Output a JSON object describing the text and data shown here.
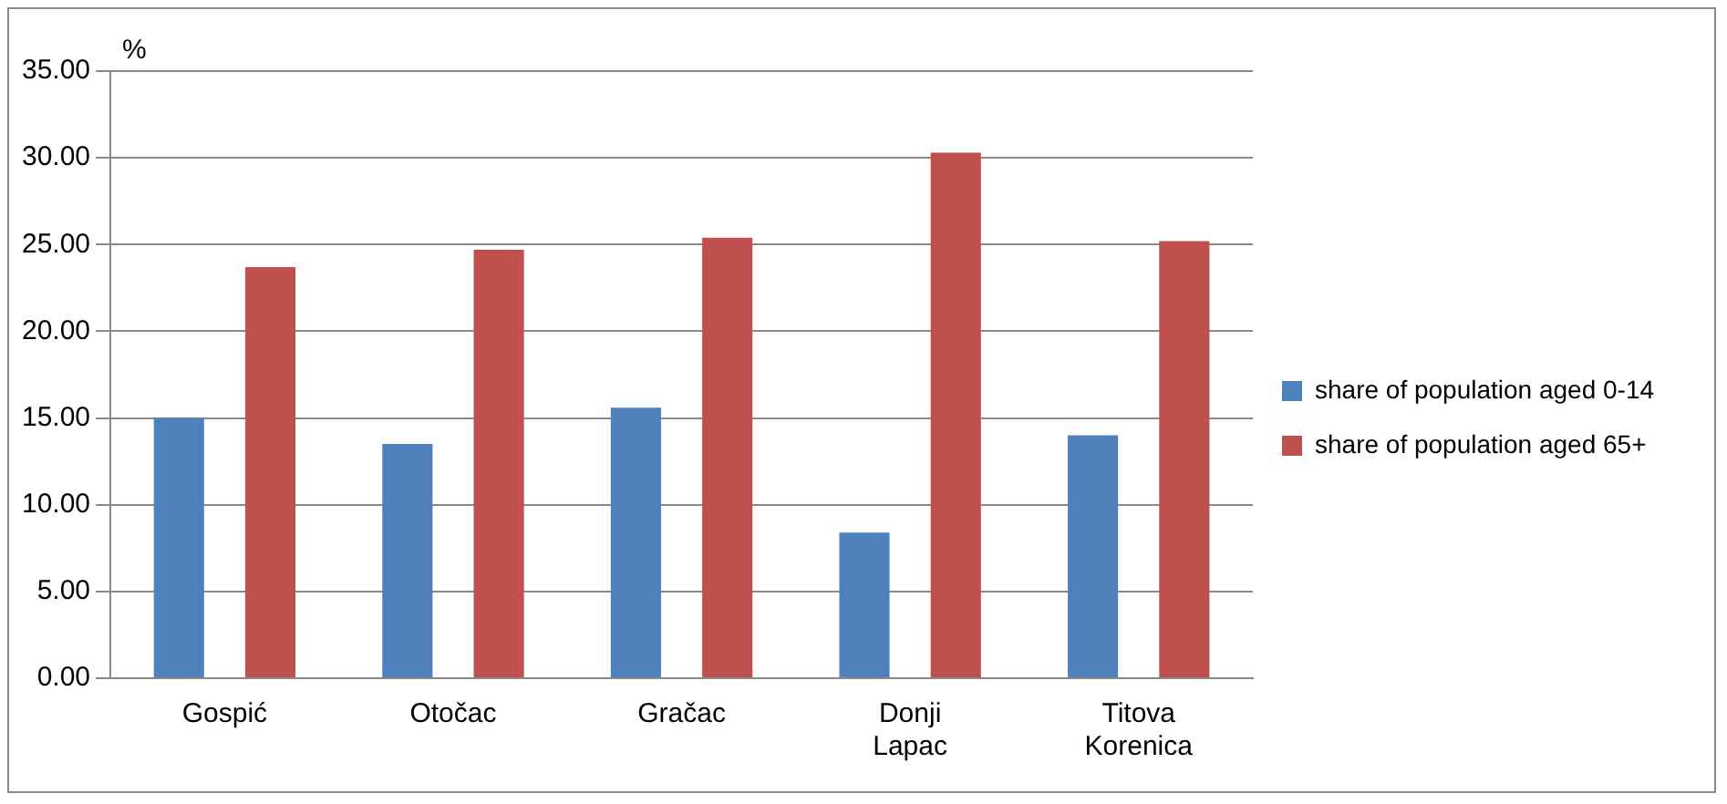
{
  "chart_data": {
    "type": "bar",
    "ylabel": "%",
    "categories": [
      "Gospić",
      "Otočac",
      "Gračac",
      "Donji Lapac",
      "Titova Korenica"
    ],
    "series": [
      {
        "name": "share of population aged 0-14",
        "color": "#4f81bd",
        "values": [
          15.0,
          13.5,
          15.6,
          8.4,
          14.0
        ]
      },
      {
        "name": "share of population aged 65+",
        "color": "#c0504d",
        "values": [
          23.7,
          24.7,
          25.4,
          30.3,
          25.2
        ]
      }
    ],
    "ylim": [
      0,
      35
    ],
    "yticks": [
      {
        "value": 0,
        "label": "0.00"
      },
      {
        "value": 5,
        "label": "5.00"
      },
      {
        "value": 10,
        "label": "10.00"
      },
      {
        "value": 15,
        "label": "15.00"
      },
      {
        "value": 20,
        "label": "20.00"
      },
      {
        "value": 25,
        "label": "25.00"
      },
      {
        "value": 30,
        "label": "30.00"
      },
      {
        "value": 35,
        "label": "35.00"
      }
    ],
    "grid": "y",
    "legend": "right"
  }
}
